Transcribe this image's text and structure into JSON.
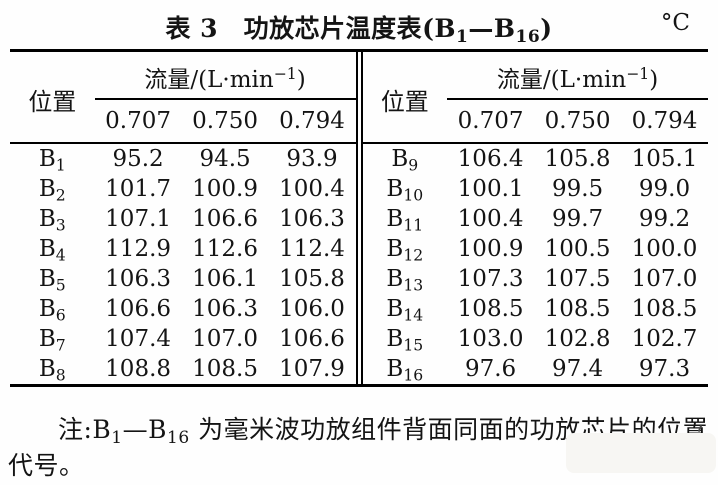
{
  "title": {
    "pre": "表 3　功放芯片温度表(B",
    "sub1": "1",
    "mid": "—B",
    "sub2": "16",
    "post": ")",
    "unit": "°C"
  },
  "header": {
    "position_label": "位置",
    "flow_prefix": "流量/(L·min",
    "flow_sup": "−1",
    "flow_suffix": ")",
    "flow_values": [
      "0.707",
      "0.750",
      "0.794"
    ]
  },
  "left_table": {
    "rows": [
      {
        "pos": "B",
        "sub": "1",
        "values": [
          "95.2",
          "94.5",
          "93.9"
        ]
      },
      {
        "pos": "B",
        "sub": "2",
        "values": [
          "101.7",
          "100.9",
          "100.4"
        ]
      },
      {
        "pos": "B",
        "sub": "3",
        "values": [
          "107.1",
          "106.6",
          "106.3"
        ]
      },
      {
        "pos": "B",
        "sub": "4",
        "values": [
          "112.9",
          "112.6",
          "112.4"
        ]
      },
      {
        "pos": "B",
        "sub": "5",
        "values": [
          "106.3",
          "106.1",
          "105.8"
        ]
      },
      {
        "pos": "B",
        "sub": "6",
        "values": [
          "106.6",
          "106.3",
          "106.0"
        ]
      },
      {
        "pos": "B",
        "sub": "7",
        "values": [
          "107.4",
          "107.0",
          "106.6"
        ]
      },
      {
        "pos": "B",
        "sub": "8",
        "values": [
          "108.8",
          "108.5",
          "107.9"
        ]
      }
    ]
  },
  "right_table": {
    "rows": [
      {
        "pos": "B",
        "sub": "9",
        "values": [
          "106.4",
          "105.8",
          "105.1"
        ]
      },
      {
        "pos": "B",
        "sub": "10",
        "values": [
          "100.1",
          "99.5",
          "99.0"
        ]
      },
      {
        "pos": "B",
        "sub": "11",
        "values": [
          "100.4",
          "99.7",
          "99.2"
        ]
      },
      {
        "pos": "B",
        "sub": "12",
        "values": [
          "100.9",
          "100.5",
          "100.0"
        ]
      },
      {
        "pos": "B",
        "sub": "13",
        "values": [
          "107.3",
          "107.5",
          "107.0"
        ]
      },
      {
        "pos": "B",
        "sub": "14",
        "values": [
          "108.5",
          "108.5",
          "108.5"
        ]
      },
      {
        "pos": "B",
        "sub": "15",
        "values": [
          "103.0",
          "102.8",
          "102.7"
        ]
      },
      {
        "pos": "B",
        "sub": "16",
        "values": [
          "97.6",
          "97.4",
          "97.3"
        ]
      }
    ]
  },
  "footnote": {
    "pre": "注:B",
    "sub1": "1",
    "mid": "—B",
    "sub2": "16",
    "post": " 为毫米波功放组件背面同面的功放芯片的位置代号。"
  }
}
